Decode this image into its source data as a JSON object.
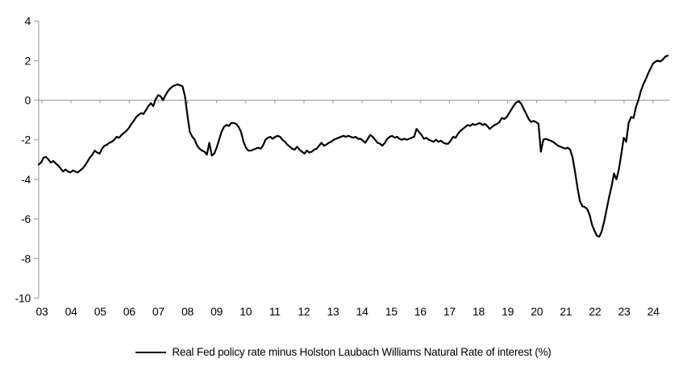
{
  "legend": {
    "label": "Real Fed policy rate minus Holston Laubach Williams Natural Rate of interest (%)"
  },
  "chart_data": {
    "type": "line",
    "title": "",
    "xlabel": "",
    "ylabel": "",
    "series_name": "Real Fed policy rate minus Holston Laubach Williams Natural Rate of interest (%)",
    "frequency": "monthly",
    "x_start_year": 2003,
    "x_end_label": "mid-2024",
    "ylim": [
      -10,
      4
    ],
    "y_ticks": [
      4,
      2,
      0,
      -2,
      -4,
      -6,
      -8,
      -10
    ],
    "x_tick_labels": [
      "03",
      "04",
      "05",
      "06",
      "07",
      "08",
      "09",
      "10",
      "11",
      "12",
      "13",
      "14",
      "15",
      "16",
      "17",
      "18",
      "19",
      "20",
      "21",
      "22",
      "23",
      "24"
    ],
    "grid": false,
    "zero_line": true,
    "legend_position": "bottom",
    "line_color": "#000000",
    "axis_color": "#a6a6a6",
    "values": [
      -3.25,
      -3.15,
      -2.9,
      -2.87,
      -3.0,
      -3.15,
      -3.07,
      -3.2,
      -3.3,
      -3.45,
      -3.6,
      -3.5,
      -3.6,
      -3.65,
      -3.55,
      -3.6,
      -3.65,
      -3.55,
      -3.45,
      -3.3,
      -3.1,
      -2.9,
      -2.75,
      -2.55,
      -2.65,
      -2.7,
      -2.45,
      -2.3,
      -2.25,
      -2.15,
      -2.1,
      -2.0,
      -1.85,
      -1.9,
      -1.75,
      -1.65,
      -1.55,
      -1.4,
      -1.2,
      -1.05,
      -0.85,
      -0.75,
      -0.65,
      -0.7,
      -0.5,
      -0.3,
      -0.15,
      -0.3,
      0.05,
      0.25,
      0.2,
      0.0,
      0.25,
      0.45,
      0.6,
      0.7,
      0.75,
      0.8,
      0.75,
      0.7,
      0.2,
      -0.75,
      -1.6,
      -1.85,
      -2.0,
      -2.3,
      -2.45,
      -2.55,
      -2.6,
      -2.75,
      -2.15,
      -2.8,
      -2.7,
      -2.4,
      -2.0,
      -1.6,
      -1.35,
      -1.25,
      -1.3,
      -1.15,
      -1.15,
      -1.2,
      -1.35,
      -1.6,
      -2.1,
      -2.4,
      -2.55,
      -2.55,
      -2.5,
      -2.45,
      -2.4,
      -2.45,
      -2.3,
      -2.0,
      -1.9,
      -1.85,
      -1.95,
      -1.85,
      -1.8,
      -1.85,
      -2.0,
      -2.1,
      -2.25,
      -2.35,
      -2.45,
      -2.5,
      -2.35,
      -2.5,
      -2.6,
      -2.7,
      -2.55,
      -2.65,
      -2.6,
      -2.5,
      -2.45,
      -2.3,
      -2.15,
      -2.3,
      -2.25,
      -2.15,
      -2.1,
      -2.0,
      -1.95,
      -1.9,
      -1.85,
      -1.8,
      -1.85,
      -1.8,
      -1.85,
      -1.9,
      -1.85,
      -1.95,
      -1.95,
      -2.05,
      -2.15,
      -1.95,
      -1.75,
      -1.85,
      -2.0,
      -2.15,
      -2.2,
      -2.3,
      -2.15,
      -1.95,
      -1.85,
      -1.8,
      -1.9,
      -1.85,
      -1.95,
      -2.0,
      -1.95,
      -2.0,
      -1.95,
      -1.9,
      -1.85,
      -1.45,
      -1.6,
      -1.75,
      -1.95,
      -1.9,
      -2.0,
      -2.05,
      -2.1,
      -2.0,
      -2.1,
      -2.05,
      -2.15,
      -2.2,
      -2.2,
      -2.05,
      -1.85,
      -1.9,
      -1.7,
      -1.55,
      -1.45,
      -1.35,
      -1.25,
      -1.3,
      -1.2,
      -1.25,
      -1.2,
      -1.15,
      -1.25,
      -1.2,
      -1.3,
      -1.45,
      -1.35,
      -1.25,
      -1.2,
      -1.1,
      -0.9,
      -0.95,
      -0.85,
      -0.65,
      -0.45,
      -0.25,
      -0.1,
      -0.05,
      -0.2,
      -0.45,
      -0.7,
      -0.95,
      -1.1,
      -1.05,
      -1.1,
      -1.2,
      -2.6,
      -2.0,
      -1.95,
      -2.0,
      -2.05,
      -2.1,
      -2.2,
      -2.3,
      -2.35,
      -2.4,
      -2.45,
      -2.4,
      -2.5,
      -2.9,
      -3.6,
      -4.4,
      -5.1,
      -5.35,
      -5.4,
      -5.5,
      -5.8,
      -6.3,
      -6.6,
      -6.85,
      -6.9,
      -6.6,
      -6.1,
      -5.5,
      -4.9,
      -4.35,
      -3.7,
      -4.0,
      -3.5,
      -2.7,
      -1.9,
      -2.1,
      -1.15,
      -0.85,
      -0.9,
      -0.35,
      0.0,
      0.45,
      0.8,
      1.05,
      1.35,
      1.6,
      1.85,
      1.95,
      2.0,
      1.95,
      2.05,
      2.2,
      2.25
    ]
  }
}
